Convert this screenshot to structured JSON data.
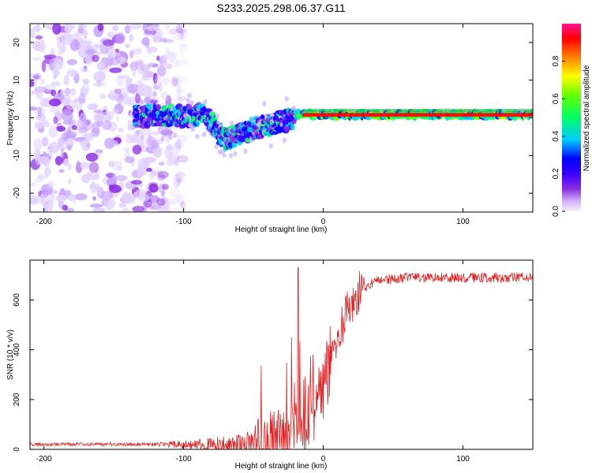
{
  "title": "S233.2025.298.06.37.G11",
  "chart_data": [
    {
      "type": "heatmap",
      "name": "spectrogram",
      "xlabel": "Height of straight line (km)",
      "ylabel": "Frequency (Hz)",
      "xlim": [
        -210,
        150
      ],
      "ylim": [
        -25,
        25
      ],
      "xticks": [
        -200,
        -100,
        0,
        100
      ],
      "yticks": [
        -20,
        -10,
        0,
        10,
        20
      ],
      "colorbar": {
        "label": "Normalized spectral amplitude",
        "range": [
          0,
          1
        ],
        "ticks": [
          "0.0",
          "0.2",
          "0.4",
          "0.6",
          "0.8"
        ],
        "colors": [
          "#f5f0ff",
          "#d6b8ff",
          "#8a2be2",
          "#3a00ff",
          "#0000ff",
          "#00ccff",
          "#00ff66",
          "#66ff00",
          "#ffff00",
          "#ff8000",
          "#ff0000",
          "#ff1493"
        ]
      },
      "noise_region_km": [
        -210,
        -120
      ],
      "ridge_start_km": -135,
      "ridge_stable_from_km": -20,
      "ridge_peak_hz": 0.8,
      "band_color": "#ff0000"
    },
    {
      "type": "line",
      "name": "snr",
      "xlabel": "Height of straight line (km)",
      "ylabel": "SNR (10 * v/v)",
      "xlim": [
        -210,
        150
      ],
      "ylim": [
        0,
        760
      ],
      "xticks": [
        -200,
        -100,
        0,
        100
      ],
      "yticks": [
        0,
        200,
        400,
        600
      ],
      "line_color": "#e02020",
      "baseline": 20,
      "plateau": 690,
      "transition_center_km": 5,
      "max_spike": {
        "x": -18,
        "y": 730
      }
    }
  ]
}
